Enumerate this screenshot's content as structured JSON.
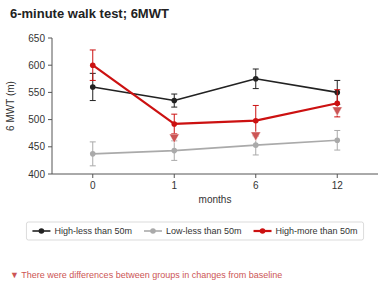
{
  "chart_data": {
    "type": "line",
    "title": "6-minute walk test; 6MWT",
    "x_label": "months",
    "y_label": "6 MWT (m)",
    "categories": [
      "0",
      "1",
      "6",
      "12"
    ],
    "series": [
      {
        "name": "High-less than 50m",
        "color": "#222222",
        "marker": "circle",
        "values": [
          560,
          535,
          575,
          550
        ],
        "yerr": [
          25,
          12,
          18,
          22
        ]
      },
      {
        "name": "Low-less than 50m",
        "color": "#aaaaaa",
        "marker": "circle",
        "values": [
          437,
          443,
          453,
          462
        ],
        "yerr": [
          22,
          18,
          18,
          18
        ]
      },
      {
        "name": "High-more than 50m",
        "color": "#cc1111",
        "marker": "circle",
        "values": [
          600,
          492,
          498,
          530
        ],
        "yerr": [
          28,
          18,
          28,
          25
        ]
      }
    ],
    "significance": {
      "categories": [
        "1",
        "6",
        "12"
      ],
      "values": [
        466,
        470,
        516
      ],
      "color": "#cc5555",
      "marker": "triangle-down"
    },
    "footnote": "▼  There were differences between groups in changes from baseline",
    "footnote_color": "#cc5555",
    "ylim": [
      400,
      650
    ],
    "yticks": [
      400,
      450,
      500,
      550,
      600,
      650
    ],
    "grid": false,
    "legend": "bottom"
  }
}
